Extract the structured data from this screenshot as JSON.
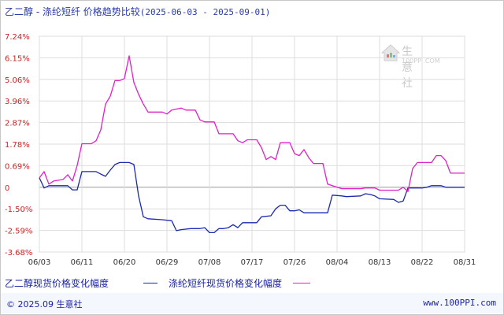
{
  "title": {
    "prefix": "乙二醇 - 涤纶短纤 价格趋势比较",
    "range": "(2025-06-03 - 2025-09-01)"
  },
  "colors": {
    "series_a": "#1a2ab0",
    "series_b": "#e020c8",
    "y_tick_text": "#cc2222",
    "grid": "#dddddd",
    "zero_line": "#999999"
  },
  "logo": {
    "name": "生意社",
    "url": "100PPI.COM",
    "icon": "house-logo-icon"
  },
  "legend": {
    "a_label": "乙二醇现货价格变化幅度",
    "b_label": "涤纶短纤现货价格变化幅度"
  },
  "footer": {
    "left": "© 2025.09 生意社",
    "right": "www.100PPI.com"
  },
  "chart_data": {
    "type": "line",
    "x_ticks": [
      "06/03",
      "06/11",
      "06/20",
      "06/29",
      "07/08",
      "07/17",
      "07/26",
      "08/04",
      "08/13",
      "08/22",
      "08/31"
    ],
    "y_ticks": [
      "7.24%",
      "6.15%",
      "5.06%",
      "3.96%",
      "2.87%",
      "1.78%",
      "0.69%",
      "0",
      "-1.50%",
      "-2.59%",
      "-3.68%"
    ],
    "y_tick_values": [
      7.24,
      6.15,
      5.06,
      3.96,
      2.87,
      1.78,
      0.69,
      0,
      -1.5,
      -2.59,
      -3.68
    ],
    "ylim": [
      -3.68,
      7.24
    ],
    "x_start": "2025-06-03",
    "x_end": "2025-09-01",
    "series": [
      {
        "name": "乙二醇现货价格变化幅度",
        "key": "a",
        "points": [
          [
            "2025-06-03",
            0.3
          ],
          [
            "2025-06-04",
            -0.05
          ],
          [
            "2025-06-05",
            0.05
          ],
          [
            "2025-06-09",
            0.05
          ],
          [
            "2025-06-10",
            -0.18
          ],
          [
            "2025-06-11",
            -0.18
          ],
          [
            "2025-06-12",
            0.5
          ],
          [
            "2025-06-13",
            0.5
          ],
          [
            "2025-06-15",
            0.5
          ],
          [
            "2025-06-16",
            0.42
          ],
          [
            "2025-06-17",
            0.35
          ],
          [
            "2025-06-18",
            0.55
          ],
          [
            "2025-06-19",
            0.75
          ],
          [
            "2025-06-20",
            0.85
          ],
          [
            "2025-06-22",
            0.85
          ],
          [
            "2025-06-23",
            0.75
          ],
          [
            "2025-06-24",
            -0.6
          ],
          [
            "2025-06-25",
            -1.9
          ],
          [
            "2025-06-26",
            -2.0
          ],
          [
            "2025-06-29",
            -2.05
          ],
          [
            "2025-07-01",
            -2.1
          ],
          [
            "2025-07-02",
            -2.6
          ],
          [
            "2025-07-03",
            -2.55
          ],
          [
            "2025-07-05",
            -2.5
          ],
          [
            "2025-07-07",
            -2.5
          ],
          [
            "2025-07-08",
            -2.45
          ],
          [
            "2025-07-09",
            -2.7
          ],
          [
            "2025-07-10",
            -2.7
          ],
          [
            "2025-07-11",
            -2.5
          ],
          [
            "2025-07-12",
            -2.5
          ],
          [
            "2025-07-13",
            -2.45
          ],
          [
            "2025-07-14",
            -2.3
          ],
          [
            "2025-07-15",
            -2.45
          ],
          [
            "2025-07-16",
            -2.2
          ],
          [
            "2025-07-17",
            -2.2
          ],
          [
            "2025-07-19",
            -2.2
          ],
          [
            "2025-07-20",
            -1.9
          ],
          [
            "2025-07-22",
            -1.85
          ],
          [
            "2025-07-23",
            -1.5
          ],
          [
            "2025-07-24",
            -1.25
          ],
          [
            "2025-07-25",
            -1.25
          ],
          [
            "2025-07-26",
            -1.6
          ],
          [
            "2025-07-27",
            -1.6
          ],
          [
            "2025-07-28",
            -1.55
          ],
          [
            "2025-07-29",
            -1.7
          ],
          [
            "2025-08-03",
            -1.7
          ],
          [
            "2025-08-04",
            -0.55
          ],
          [
            "2025-08-06",
            -0.6
          ],
          [
            "2025-08-07",
            -0.65
          ],
          [
            "2025-08-10",
            -0.6
          ],
          [
            "2025-08-11",
            -0.45
          ],
          [
            "2025-08-12",
            -0.5
          ],
          [
            "2025-08-13",
            -0.6
          ],
          [
            "2025-08-14",
            -0.8
          ],
          [
            "2025-08-17",
            -0.85
          ],
          [
            "2025-08-18",
            -1.05
          ],
          [
            "2025-08-19",
            -0.95
          ],
          [
            "2025-08-20",
            -0.05
          ],
          [
            "2025-08-22",
            -0.05
          ],
          [
            "2025-08-23",
            -0.05
          ],
          [
            "2025-08-24",
            0.0
          ],
          [
            "2025-08-25",
            0.05
          ],
          [
            "2025-08-27",
            0.05
          ],
          [
            "2025-08-28",
            0.0
          ],
          [
            "2025-09-01",
            0.0
          ]
        ]
      },
      {
        "name": "涤纶短纤现货价格变化幅度",
        "key": "b",
        "points": [
          [
            "2025-06-03",
            0.3
          ],
          [
            "2025-06-04",
            0.5
          ],
          [
            "2025-06-05",
            0.1
          ],
          [
            "2025-06-06",
            0.2
          ],
          [
            "2025-06-08",
            0.25
          ],
          [
            "2025-06-09",
            0.4
          ],
          [
            "2025-06-10",
            0.2
          ],
          [
            "2025-06-11",
            0.7
          ],
          [
            "2025-06-12",
            1.8
          ],
          [
            "2025-06-14",
            1.8
          ],
          [
            "2025-06-15",
            1.95
          ],
          [
            "2025-06-16",
            2.5
          ],
          [
            "2025-06-17",
            3.8
          ],
          [
            "2025-06-18",
            4.2
          ],
          [
            "2025-06-19",
            5.0
          ],
          [
            "2025-06-20",
            5.0
          ],
          [
            "2025-06-21",
            5.1
          ],
          [
            "2025-06-22",
            6.25
          ],
          [
            "2025-06-23",
            4.9
          ],
          [
            "2025-06-24",
            4.3
          ],
          [
            "2025-06-25",
            3.8
          ],
          [
            "2025-06-26",
            3.4
          ],
          [
            "2025-06-29",
            3.4
          ],
          [
            "2025-06-30",
            3.3
          ],
          [
            "2025-07-01",
            3.5
          ],
          [
            "2025-07-03",
            3.6
          ],
          [
            "2025-07-04",
            3.5
          ],
          [
            "2025-07-06",
            3.5
          ],
          [
            "2025-07-07",
            3.0
          ],
          [
            "2025-07-08",
            2.9
          ],
          [
            "2025-07-10",
            2.9
          ],
          [
            "2025-07-11",
            2.3
          ],
          [
            "2025-07-14",
            2.3
          ],
          [
            "2025-07-15",
            1.95
          ],
          [
            "2025-07-16",
            1.85
          ],
          [
            "2025-07-17",
            2.0
          ],
          [
            "2025-07-19",
            2.0
          ],
          [
            "2025-07-20",
            1.6
          ],
          [
            "2025-07-21",
            1.0
          ],
          [
            "2025-07-22",
            1.15
          ],
          [
            "2025-07-23",
            1.0
          ],
          [
            "2025-07-24",
            1.85
          ],
          [
            "2025-07-26",
            1.85
          ],
          [
            "2025-07-27",
            1.3
          ],
          [
            "2025-07-28",
            1.2
          ],
          [
            "2025-07-29",
            1.5
          ],
          [
            "2025-07-30",
            1.1
          ],
          [
            "2025-07-31",
            0.8
          ],
          [
            "2025-08-02",
            0.8
          ],
          [
            "2025-08-03",
            0.1
          ],
          [
            "2025-08-04",
            0.05
          ],
          [
            "2025-08-06",
            -0.1
          ],
          [
            "2025-08-10",
            -0.1
          ],
          [
            "2025-08-11",
            -0.05
          ],
          [
            "2025-08-13",
            -0.05
          ],
          [
            "2025-08-14",
            -0.2
          ],
          [
            "2025-08-18",
            -0.2
          ],
          [
            "2025-08-19",
            0.0
          ],
          [
            "2025-08-20",
            -0.3
          ],
          [
            "2025-08-21",
            0.6
          ],
          [
            "2025-08-22",
            0.85
          ],
          [
            "2025-08-24",
            0.85
          ],
          [
            "2025-08-25",
            0.85
          ],
          [
            "2025-08-26",
            1.2
          ],
          [
            "2025-08-27",
            1.2
          ],
          [
            "2025-08-28",
            0.95
          ],
          [
            "2025-08-29",
            0.45
          ],
          [
            "2025-09-01",
            0.45
          ]
        ]
      }
    ]
  }
}
